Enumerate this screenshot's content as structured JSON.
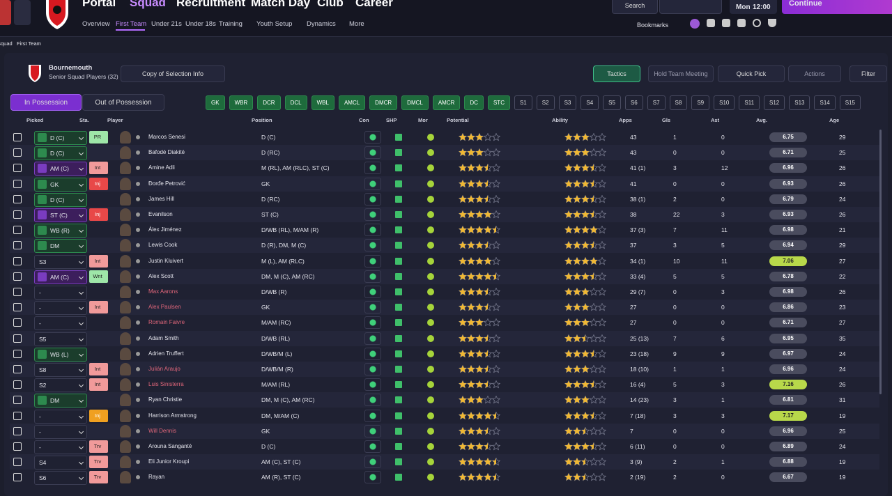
{
  "header": {
    "nav": [
      "Portal",
      "Squad",
      "Recruitment",
      "Match Day",
      "Club",
      "Career"
    ],
    "subnav": [
      "Overview",
      "First Team",
      "Under 21s",
      "Under 18s",
      "Training",
      "Youth Setup",
      "Dynamics",
      "More"
    ],
    "search": "Search",
    "day": "Mon",
    "time": "12:00",
    "continue": "Continue",
    "bookmarks": "Bookmarks"
  },
  "breadcrumb": [
    "Squad",
    "First Team"
  ],
  "team": {
    "name": "Bournemouth",
    "subtitle": "Senior Squad Players (32)",
    "copy": "Copy of Selection Info",
    "tactics": "Tactics",
    "meeting": "Hold Team Meeting",
    "quick_pick": "Quick Pick",
    "actions": "Actions",
    "filter": "Filter",
    "tabs": [
      "In Possession",
      "Out of Possession"
    ]
  },
  "positions": [
    "GK",
    "WBR",
    "DCR",
    "DCL",
    "WBL",
    "AMCL",
    "DMCR",
    "DMCL",
    "AMCR",
    "DC",
    "STC",
    "S1",
    "S2",
    "S3",
    "S4",
    "S5",
    "S6",
    "S7",
    "S8",
    "S9",
    "S10",
    "S11",
    "S12",
    "S13",
    "S14",
    "S15"
  ],
  "table": {
    "columns": [
      "Picked",
      "Sta.",
      "Player",
      "Position",
      "Con",
      "SHP",
      "Mor",
      "Potential",
      "Ability",
      "Apps",
      "Gls",
      "Ast",
      "Avg.",
      "Age"
    ],
    "rows": [
      {
        "picked": "D (C)",
        "status": "PR",
        "name": "Marcos Senesi",
        "position": "D (C)",
        "potential": 3,
        "ability": 3,
        "apps": "43",
        "gls": 1,
        "ast": 0,
        "avg": 6.75,
        "age": 29
      },
      {
        "picked": "D (C)",
        "name": "Bafodé Diakité",
        "position": "D (RC)",
        "potential": 3,
        "ability": 3,
        "apps": "43",
        "gls": 0,
        "ast": 0,
        "avg": 6.71,
        "age": 25
      },
      {
        "picked": "AM (C)",
        "status": "Int",
        "name": "Amine Adli",
        "position": "M (RL), AM (RLC), ST (C)",
        "potential": 3.5,
        "ability": 3.5,
        "apps": "41 (1)",
        "gls": 3,
        "ast": 12,
        "avg": 6.96,
        "age": 26
      },
      {
        "picked": "GK",
        "status": "Inj",
        "name": "Đorđe Petrović",
        "position": "GK",
        "potential": 3.5,
        "ability": 3.5,
        "apps": "41",
        "gls": 0,
        "ast": 0,
        "avg": 6.93,
        "age": 26
      },
      {
        "picked": "D (C)",
        "name": "James Hill",
        "position": "D (RC)",
        "potential": 3.5,
        "ability": 3.5,
        "apps": "38 (1)",
        "gls": 2,
        "ast": 0,
        "avg": 6.79,
        "age": 24
      },
      {
        "picked": "ST (C)",
        "status": "Inj",
        "name": "Evanilson",
        "position": "ST (C)",
        "potential": 4,
        "ability": 3.5,
        "apps": "38",
        "gls": 22,
        "ast": 3,
        "avg": 6.93,
        "age": 26
      },
      {
        "picked": "WB (R)",
        "name": "Álex Jiménez",
        "position": "D/WB (RL), M/AM (R)",
        "potential": 4.5,
        "ability": 4,
        "apps": "37 (3)",
        "gls": 7,
        "ast": 11,
        "avg": 6.98,
        "age": 21
      },
      {
        "picked": "DM",
        "name": "Lewis Cook",
        "position": "D (R), DM, M (C)",
        "potential": 3.5,
        "ability": 3.5,
        "apps": "37",
        "gls": 3,
        "ast": 5,
        "avg": 6.94,
        "age": 29
      },
      {
        "picked": "S3",
        "status": "Int",
        "name": "Justin Kluivert",
        "position": "M (L), AM (RLC)",
        "potential": 4,
        "ability": 4,
        "apps": "34 (1)",
        "gls": 10,
        "ast": 11,
        "avg": 7.06,
        "age": 27
      },
      {
        "picked": "AM (C)",
        "status": "Wnt",
        "name": "Alex Scott",
        "position": "DM, M (C), AM (RC)",
        "potential": 4.5,
        "ability": 3.5,
        "apps": "33 (4)",
        "gls": 5,
        "ast": 5,
        "avg": 6.78,
        "age": 22
      },
      {
        "picked": "-",
        "name": "Max Aarons",
        "name_color": "#e0667a",
        "position": "D/WB (R)",
        "potential": 3.5,
        "ability": 3,
        "apps": "29 (7)",
        "gls": 0,
        "ast": 3,
        "avg": 6.98,
        "age": 26
      },
      {
        "picked": "-",
        "status": "Int",
        "name": "Alex Paulsen",
        "name_color": "#e0667a",
        "position": "GK",
        "potential": 3.5,
        "ability": 3,
        "apps": "27",
        "gls": 0,
        "ast": 0,
        "avg": 6.86,
        "age": 23
      },
      {
        "picked": "-",
        "name": "Romain Faivre",
        "name_color": "#e0667a",
        "position": "M/AM (RC)",
        "potential": 3,
        "ability": 3,
        "apps": "27",
        "gls": 0,
        "ast": 0,
        "avg": 6.71,
        "age": 27
      },
      {
        "picked": "S5",
        "name": "Adam Smith",
        "position": "D/WB (RL)",
        "potential": 3.5,
        "ability": 2.5,
        "apps": "25 (13)",
        "gls": 7,
        "ast": 6,
        "avg": 6.95,
        "age": 35
      },
      {
        "picked": "WB (L)",
        "name": "Adrien Truffert",
        "position": "D/WB/M (L)",
        "potential": 3.5,
        "ability": 3.5,
        "apps": "23 (18)",
        "gls": 9,
        "ast": 9,
        "avg": 6.97,
        "age": 24
      },
      {
        "picked": "S8",
        "status": "Int",
        "name": "Julián Araujo",
        "name_color": "#e0667a",
        "position": "D/WB/M (R)",
        "potential": 3.5,
        "ability": 3,
        "apps": "18 (10)",
        "gls": 1,
        "ast": 1,
        "avg": 6.96,
        "age": 24
      },
      {
        "picked": "S2",
        "status": "Int",
        "name": "Luis Sinisterra",
        "name_color": "#e0667a",
        "position": "M/AM (RL)",
        "potential": 3.5,
        "ability": 3.5,
        "apps": "16 (4)",
        "gls": 5,
        "ast": 3,
        "avg": 7.16,
        "age": 26
      },
      {
        "picked": "DM",
        "name": "Ryan Christie",
        "position": "DM, M (C), AM (RC)",
        "potential": 3,
        "ability": 3,
        "apps": "14 (23)",
        "gls": 3,
        "ast": 1,
        "avg": 6.81,
        "age": 31
      },
      {
        "picked": "-",
        "status": "Inj",
        "name": "Harrison Armstrong",
        "position": "DM, M/AM (C)",
        "potential": 4.5,
        "ability": 3.5,
        "apps": "7 (18)",
        "gls": 3,
        "ast": 3,
        "avg": 7.17,
        "age": 19
      },
      {
        "picked": "-",
        "name": "Will Dennis",
        "name_color": "#e0667a",
        "position": "GK",
        "potential": 3.5,
        "ability": 2.5,
        "apps": "7",
        "gls": 0,
        "ast": 0,
        "avg": 6.96,
        "age": 25
      },
      {
        "picked": "-",
        "status": "Trv",
        "name": "Arouna Sanganté",
        "position": "D (C)",
        "potential": 3.5,
        "ability": 3.5,
        "apps": "6 (11)",
        "gls": 0,
        "ast": 0,
        "avg": 6.89,
        "age": 24
      },
      {
        "picked": "S4",
        "status": "Trv",
        "name": "Eli Junior Kroupi",
        "position": "AM (C), ST (C)",
        "potential": 4.5,
        "ability": 2.5,
        "apps": "3 (9)",
        "gls": 2,
        "ast": 1,
        "avg": 6.88,
        "age": 19
      },
      {
        "picked": "S6",
        "status": "Trv",
        "name": "Rayan",
        "position": "AM (R), ST (C)",
        "potential": 4.5,
        "ability": 2.5,
        "apps": "2 (19)",
        "gls": 2,
        "ast": 0,
        "avg": 6.67,
        "age": 19
      }
    ]
  }
}
